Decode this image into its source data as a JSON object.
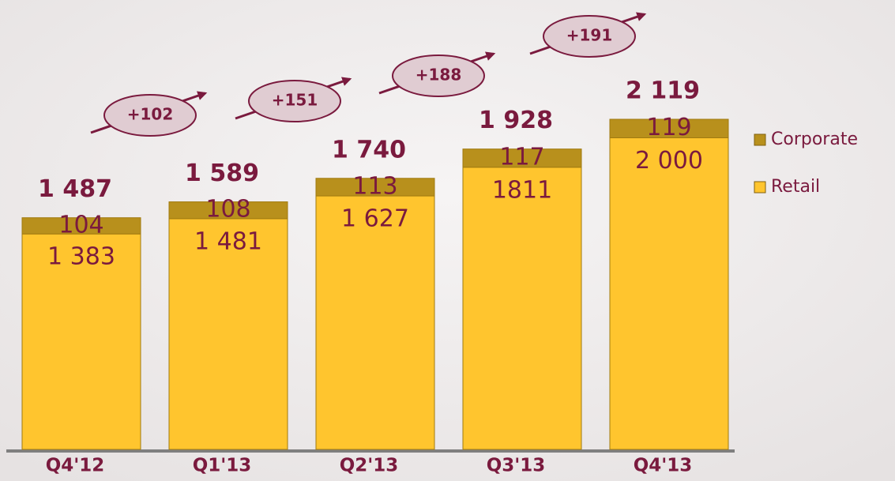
{
  "chart_data": {
    "type": "stacked-bar",
    "categories": [
      "Q4'12",
      "Q1'13",
      "Q2'13",
      "Q3'13",
      "Q4'13"
    ],
    "series": [
      {
        "name": "Retail",
        "color": "#ffc52e",
        "values": [
          1383,
          1481,
          1627,
          1811,
          2000
        ],
        "value_labels": [
          "1 383",
          "1 481",
          "1 627",
          "1811",
          "2 000"
        ]
      },
      {
        "name": "Corporate",
        "color": "#b8901c",
        "values": [
          104,
          108,
          113,
          117,
          119
        ]
      }
    ],
    "totals": {
      "values": [
        1487,
        1589,
        1740,
        1928,
        2119
      ],
      "value_labels": [
        "1 487",
        "1 589",
        "1 740",
        "1 928",
        "2 119"
      ]
    },
    "growth": {
      "values": [
        102,
        151,
        188,
        191
      ],
      "value_labels": [
        "+102",
        "+151",
        "+188",
        "+191"
      ]
    }
  }
}
